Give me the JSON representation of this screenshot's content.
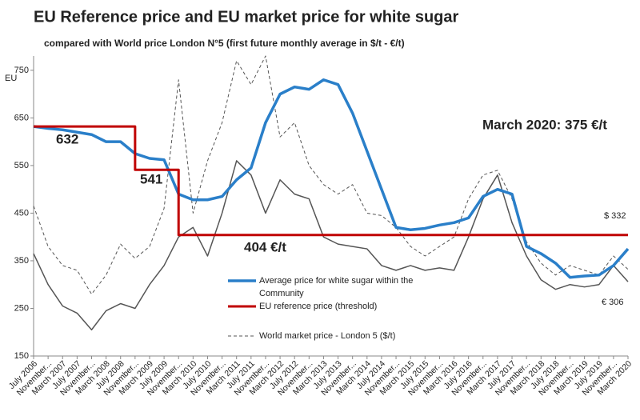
{
  "chart_data": {
    "type": "line",
    "title": "EU Reference price and EU market price for white sugar",
    "subtitle": "compared with World price London N°5 (first future monthly average in $/t - €/t)",
    "y_label": "EU",
    "categories": [
      "July 2006",
      "November...",
      "March 2007",
      "July 2007",
      "November...",
      "March 2008",
      "July 2008",
      "November...",
      "March 2009",
      "July 2009",
      "November...",
      "March 2010",
      "July 2010",
      "November...",
      "March 2011",
      "July 2011",
      "November...",
      "March 2012",
      "July 2012",
      "November...",
      "March 2013",
      "July 2013",
      "November...",
      "March 2014",
      "July 2014",
      "November...",
      "March 2015",
      "July 2015",
      "November...",
      "March 2016",
      "July 2016",
      "November...",
      "March 2017",
      "July 2017",
      "November...",
      "March 2018",
      "July 2018",
      "November...",
      "March 2019",
      "July 2019",
      "November...",
      "March 2020"
    ],
    "series": [
      {
        "name": "Average price for white sugar within the Community",
        "color": "#2a7fc9",
        "linestyle": "solid",
        "values": [
          632,
          628,
          625,
          620,
          615,
          600,
          600,
          575,
          565,
          562,
          490,
          478,
          478,
          485,
          520,
          545,
          640,
          700,
          715,
          710,
          730,
          720,
          660,
          580,
          500,
          420,
          415,
          418,
          425,
          430,
          440,
          485,
          500,
          490,
          380,
          365,
          345,
          315,
          318,
          320,
          340,
          375
        ]
      },
      {
        "name": "EU reference price (threshold)",
        "color": "#c00000",
        "linestyle": "solid",
        "drawstyle": "steps",
        "values": [
          632,
          632,
          632,
          632,
          632,
          632,
          632,
          541,
          541,
          541,
          404,
          404,
          404,
          404,
          404,
          404,
          404,
          404,
          404,
          404,
          404,
          404,
          404,
          404,
          404,
          404,
          404,
          404,
          404,
          404,
          404,
          404,
          404,
          404,
          404,
          404,
          404,
          404,
          404,
          404,
          404,
          404
        ]
      },
      {
        "name": "World market price - London 5 ($/t)",
        "color": "#555555",
        "linestyle": "dashed",
        "values": [
          465,
          380,
          340,
          330,
          280,
          320,
          385,
          355,
          380,
          460,
          730,
          450,
          560,
          640,
          770,
          720,
          780,
          610,
          640,
          550,
          510,
          490,
          510,
          450,
          445,
          420,
          380,
          360,
          380,
          400,
          480,
          530,
          540,
          480,
          390,
          345,
          320,
          340,
          330,
          320,
          360,
          332
        ]
      },
      {
        "color": "#555555",
        "linestyle": "solid",
        "values": [
          365,
          300,
          255,
          240,
          205,
          245,
          260,
          250,
          300,
          340,
          400,
          420,
          360,
          450,
          560,
          530,
          450,
          520,
          490,
          480,
          400,
          385,
          380,
          375,
          340,
          330,
          340,
          330,
          335,
          330,
          400,
          480,
          530,
          430,
          360,
          310,
          290,
          300,
          295,
          300,
          340,
          306
        ]
      }
    ],
    "ylim": [
      150,
      780
    ],
    "yticks": [
      150,
      250,
      350,
      450,
      550,
      650,
      750
    ],
    "annotations": [
      "632",
      "541",
      "404 €/t",
      "March 2020: 375 €/t",
      "$ 332",
      "€ 306"
    ]
  }
}
